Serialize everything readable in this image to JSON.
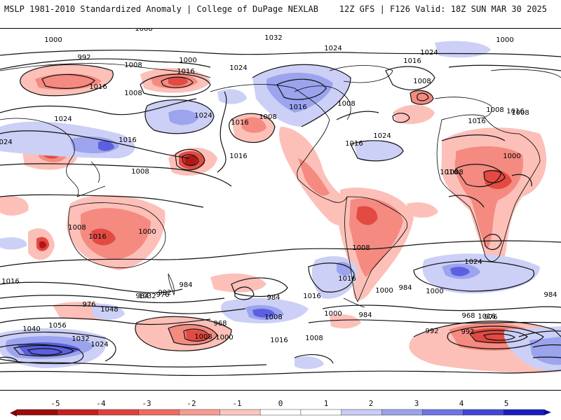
{
  "header": {
    "left": "MSLP 1981-2010 Standardized Anomaly | College of DuPage NEXLAB",
    "right": "12Z GFS | F126 Valid: 18Z SUN MAR 30 2025"
  },
  "colorbar": {
    "ticks": [
      "-5",
      "-4",
      "-3",
      "-2",
      "-1",
      "0",
      "1",
      "2",
      "3",
      "4",
      "5"
    ],
    "colors": [
      "#9e0a0a",
      "#c81e1e",
      "#e0403c",
      "#f06a60",
      "#f89a90",
      "#fcc6be",
      "#ffffff",
      "#ffffff",
      "#c8ccf6",
      "#9aa2ee",
      "#6e74e4",
      "#4246d6",
      "#1a1cc2"
    ]
  },
  "anomaly_colors": {
    "neg_light": "#fcc0b8",
    "neg_mid": "#f48a80",
    "neg_strong": "#e24a42",
    "neg_deep": "#b01818",
    "pos_light": "#ccd0f6",
    "pos_mid": "#9ca4ee",
    "pos_strong": "#5a60e0"
  },
  "isobar_labels": [
    "1016",
    "1008",
    "1000",
    "992",
    "1008",
    "1000",
    "1016",
    "1016",
    "1008",
    "1024",
    "1016",
    "1024",
    "1032",
    "1024",
    "1024",
    "1016",
    "1008",
    "1008",
    "1016",
    "1024",
    "1016",
    "1024",
    "1016",
    "1008",
    "1000",
    "1016",
    "1016",
    "1008",
    "1008",
    "1000",
    "1008",
    "1016",
    "1016",
    "1024",
    "1024",
    "1016",
    "1008",
    "1008",
    "1016",
    "1000",
    "1016",
    "976",
    "992",
    "984",
    "1032",
    "1048",
    "1056",
    "1040",
    "1032",
    "1024",
    "984",
    "976",
    "968",
    "1008",
    "1000",
    "1016",
    "1008",
    "992",
    "984",
    "984",
    "1000",
    "992",
    "1016",
    "1024",
    "968",
    "976",
    "984",
    "1016",
    "984",
    "1000",
    "1008",
    "1016",
    "1000",
    "1008"
  ]
}
